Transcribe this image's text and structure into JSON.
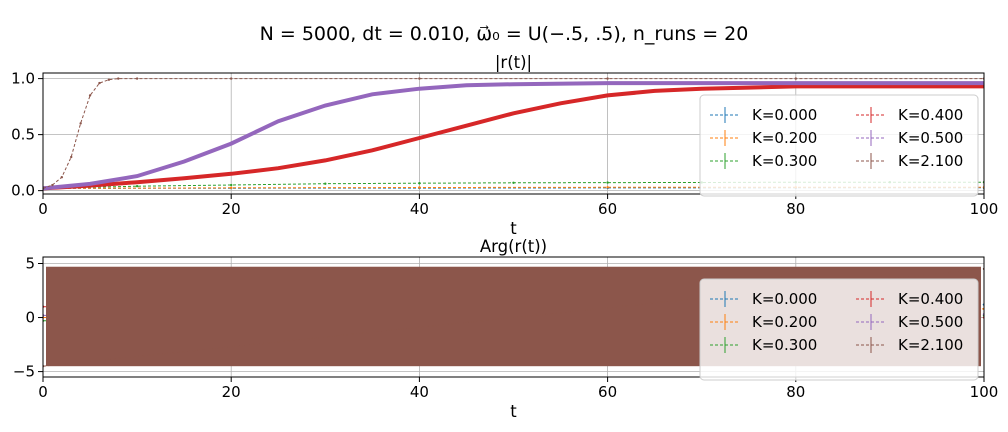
{
  "figure": {
    "suptitle": "N = 5000, dt = 0.010, ω⃗₀ = U(−.5, .5), n_runs = 20"
  },
  "colors": {
    "K=0.000": "#1f77b4",
    "K=0.200": "#ff7f0e",
    "K=0.300": "#2ca02c",
    "K=0.400": "#d62728",
    "K=0.500": "#9467bd",
    "K=2.100": "#8c564b"
  },
  "chart_data": [
    {
      "type": "line",
      "title": "|r(t)|",
      "xlabel": "t",
      "ylabel": "",
      "xlim": [
        0,
        100
      ],
      "ylim": [
        -0.03,
        1.05
      ],
      "xticks": [
        0,
        20,
        40,
        60,
        80,
        100
      ],
      "xtick_labels": [
        "0",
        "20",
        "40",
        "60",
        "80",
        "100"
      ],
      "yticks": [
        0.0,
        0.5,
        1.0
      ],
      "ytick_labels": [
        "0.0",
        "0.5",
        "1.0"
      ],
      "grid": true,
      "legend": {
        "placement": "right",
        "columns": 2
      },
      "series": [
        {
          "name": "K=0.000",
          "color": "#1f77b4",
          "x": [
            0,
            20,
            40,
            60,
            80,
            100
          ],
          "y": [
            0.02,
            0.022,
            0.023,
            0.024,
            0.025,
            0.025
          ]
        },
        {
          "name": "K=0.200",
          "color": "#ff7f0e",
          "x": [
            0,
            20,
            40,
            60,
            80,
            100
          ],
          "y": [
            0.02,
            0.025,
            0.028,
            0.03,
            0.03,
            0.03
          ]
        },
        {
          "name": "K=0.300",
          "color": "#2ca02c",
          "x": [
            0,
            10,
            20,
            30,
            40,
            50,
            60,
            70,
            80,
            90,
            100
          ],
          "y": [
            0.02,
            0.04,
            0.05,
            0.062,
            0.066,
            0.07,
            0.072,
            0.073,
            0.075,
            0.075,
            0.075
          ]
        },
        {
          "name": "K=0.400",
          "color": "#d62728",
          "x": [
            0,
            5,
            10,
            15,
            20,
            25,
            30,
            35,
            40,
            45,
            50,
            55,
            60,
            65,
            70,
            75,
            80,
            85,
            90,
            95,
            100
          ],
          "y": [
            0.02,
            0.045,
            0.075,
            0.11,
            0.15,
            0.2,
            0.27,
            0.36,
            0.47,
            0.58,
            0.69,
            0.78,
            0.85,
            0.89,
            0.91,
            0.92,
            0.93,
            0.93,
            0.93,
            0.93,
            0.93
          ]
        },
        {
          "name": "K=0.500",
          "color": "#9467bd",
          "x": [
            0,
            5,
            10,
            15,
            20,
            25,
            30,
            35,
            40,
            45,
            50,
            60,
            70,
            80,
            90,
            100
          ],
          "y": [
            0.02,
            0.06,
            0.13,
            0.26,
            0.42,
            0.62,
            0.76,
            0.86,
            0.91,
            0.94,
            0.95,
            0.96,
            0.96,
            0.96,
            0.96,
            0.96
          ]
        },
        {
          "name": "K=2.100",
          "color": "#8c564b",
          "x": [
            0,
            1,
            2,
            3,
            4,
            5,
            6,
            7,
            8,
            10,
            20,
            40,
            60,
            80,
            100
          ],
          "y": [
            0.02,
            0.05,
            0.12,
            0.3,
            0.6,
            0.85,
            0.96,
            0.99,
            1.0,
            1.0,
            1.0,
            1.0,
            1.0,
            1.0,
            1.0
          ]
        }
      ]
    },
    {
      "type": "line",
      "title": "Arg(r(t))",
      "xlabel": "t",
      "ylabel": "",
      "xlim": [
        0,
        100
      ],
      "ylim": [
        -5.5,
        5.6
      ],
      "xticks": [
        0,
        20,
        40,
        60,
        80,
        100
      ],
      "xtick_labels": [
        "0",
        "20",
        "40",
        "60",
        "80",
        "100"
      ],
      "yticks": [
        -5,
        0,
        5
      ],
      "ytick_labels": [
        "−5",
        "0",
        "5"
      ],
      "grid": true,
      "legend": {
        "placement": "right",
        "columns": 2
      },
      "series": [
        {
          "name": "K=0.000",
          "color": "#1f77b4",
          "x": [
            0,
            20,
            40,
            60,
            80,
            100
          ],
          "y": [
            0.0,
            -0.2,
            0.3,
            0.6,
            0.9,
            1.2
          ]
        },
        {
          "name": "K=0.200",
          "color": "#ff7f0e",
          "x": [
            0,
            10,
            20,
            25,
            30,
            40,
            50,
            60,
            70,
            80,
            100
          ],
          "y": [
            0.0,
            0.1,
            0.3,
            0.0,
            -0.5,
            -1.0,
            -0.5,
            0.0,
            0.3,
            0.5,
            0.8
          ]
        },
        {
          "name": "K=0.300",
          "color": "#2ca02c",
          "x": [
            0,
            20,
            40,
            60,
            80,
            100
          ],
          "y": [
            -0.3,
            -0.2,
            -0.1,
            0.0,
            0.1,
            0.2
          ]
        },
        {
          "name": "K=0.400",
          "color": "#d62728",
          "x": [
            0,
            20,
            40,
            60,
            80,
            100
          ],
          "y": [
            1.0,
            0.8,
            0.6,
            0.4,
            0.2,
            0.0
          ]
        },
        {
          "name": "K=0.500",
          "color": "#9467bd",
          "x": [
            0,
            20,
            40,
            60,
            80,
            100
          ],
          "y": [
            0.2,
            0.1,
            0.0,
            0.1,
            0.2,
            0.3
          ]
        },
        {
          "name": "K=2.100",
          "color": "#8c564b",
          "x": [
            0,
            100
          ],
          "y": [
            -4.5,
            4.5
          ],
          "band": [
            -4.5,
            4.7
          ]
        }
      ]
    }
  ]
}
